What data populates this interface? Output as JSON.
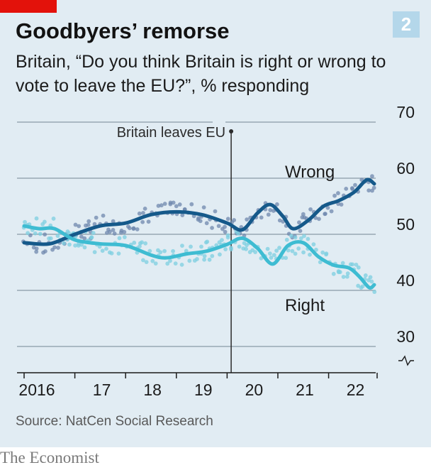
{
  "header": {
    "title": "Goodbyers’ remorse",
    "subtitle": "Britain, “Do you think Britain is right or wrong to vote to leave the EU?”, % responding",
    "chart_number": "2"
  },
  "footer": {
    "source": "Source: NatCen Social Research",
    "brand": "The Economist"
  },
  "colors": {
    "background": "#e1ecf3",
    "wrong": "#15598a",
    "right": "#3ebcd2",
    "wrong_dots": "#6f88ad",
    "right_dots": "#7ccfe0",
    "grid": "#8a9aa6",
    "accent": "#e3120b"
  },
  "chart_data": {
    "type": "line",
    "title": "Goodbyers’ remorse",
    "subtitle": "Britain, “Do you think Britain is right or wrong to vote to leave the EU?”, % responding",
    "ylim": [
      30,
      70
    ],
    "yticks": [
      30,
      40,
      50,
      60,
      70
    ],
    "y_axis_side": "right",
    "y_axis_break": true,
    "grid": true,
    "xlim": [
      2016.0,
      2022.9
    ],
    "x_tick_years": [
      2016,
      2017,
      2018,
      2019,
      2020,
      2021,
      2022
    ],
    "x_tick_labels": [
      "2016",
      "17",
      "18",
      "19",
      "20",
      "21",
      "22"
    ],
    "annotation": {
      "text": "Britain leaves EU",
      "x": 2020.08
    },
    "series": [
      {
        "name": "Wrong",
        "x": [
          2016.0,
          2016.5,
          2017.0,
          2017.5,
          2018.0,
          2018.5,
          2019.0,
          2019.5,
          2020.0,
          2020.3,
          2020.6,
          2020.85,
          2021.1,
          2021.3,
          2021.6,
          2021.9,
          2022.2,
          2022.5,
          2022.75,
          2022.9
        ],
        "values": [
          48.5,
          48.3,
          50.0,
          51.5,
          52.0,
          53.5,
          54.0,
          53.5,
          52.0,
          50.8,
          53.8,
          55.3,
          53.2,
          51.0,
          52.5,
          55.0,
          56.0,
          57.5,
          59.7,
          59.0
        ]
      },
      {
        "name": "Right",
        "x": [
          2016.0,
          2016.3,
          2016.6,
          2017.0,
          2017.5,
          2018.0,
          2018.5,
          2018.8,
          2019.2,
          2019.6,
          2020.0,
          2020.3,
          2020.6,
          2020.9,
          2021.2,
          2021.5,
          2021.8,
          2022.1,
          2022.4,
          2022.6,
          2022.8,
          2022.9
        ],
        "values": [
          51.5,
          51.0,
          51.0,
          49.0,
          48.3,
          48.0,
          46.3,
          45.8,
          46.5,
          47.0,
          48.2,
          49.3,
          47.5,
          44.7,
          48.0,
          48.5,
          46.0,
          44.5,
          44.0,
          42.5,
          40.5,
          41.0
        ]
      }
    ]
  }
}
